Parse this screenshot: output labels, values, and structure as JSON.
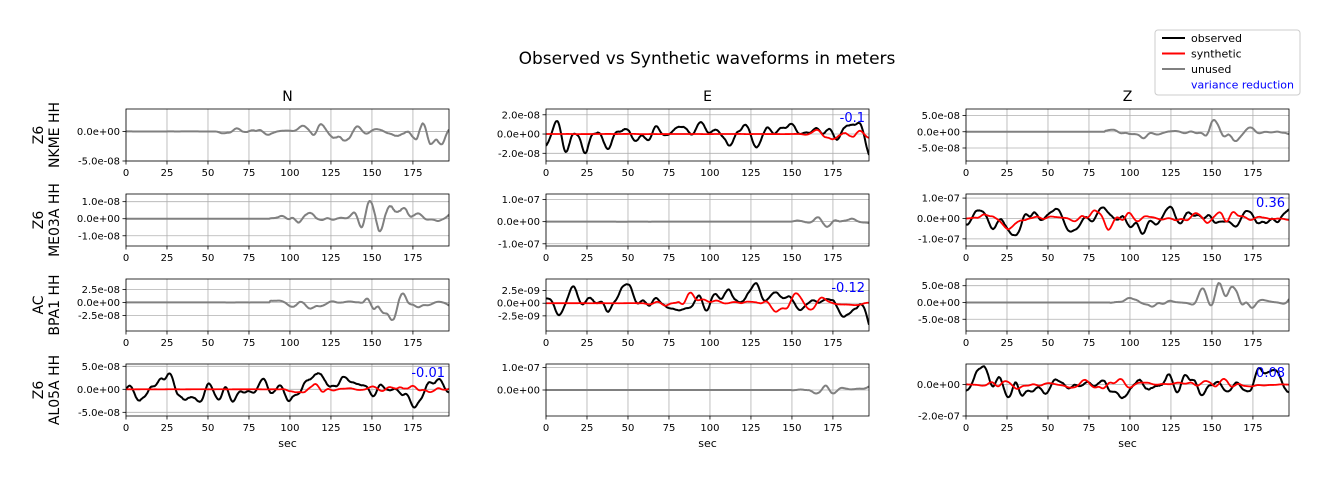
{
  "chart_data": {
    "type": "line",
    "title": "Observed vs Synthetic waveforms in meters",
    "columns": [
      "N",
      "E",
      "Z"
    ],
    "xlabel": "sec",
    "xlim": [
      0,
      197
    ],
    "xticks": [
      0,
      25,
      50,
      75,
      100,
      125,
      150,
      175
    ],
    "grid": true,
    "legend": {
      "position": "top-right",
      "entries": [
        {
          "name": "observed",
          "color": "#000000"
        },
        {
          "name": "synthetic",
          "color": "#ff0000"
        },
        {
          "name": "unused",
          "color": "#808080"
        },
        {
          "name": "variance reduction",
          "color": "#0000ff"
        }
      ]
    },
    "stations": [
      {
        "line1": "Z6",
        "line2": "NKME HH"
      },
      {
        "line1": "Z6",
        "line2": "ME03A HH"
      },
      {
        "line1": "AC",
        "line2": "BPA1 HH"
      },
      {
        "line1": "Z6",
        "line2": "AL05A HH"
      }
    ],
    "panels": [
      {
        "row": 0,
        "col": 0,
        "mode": "unused",
        "ylim": [
          -5e-08,
          3.8e-08
        ],
        "yticks": [
          {
            "v": 0,
            "label": "0.0e+00"
          },
          {
            "v": -5e-08,
            "label": "-5.0e-08"
          }
        ],
        "amp": 4e-08,
        "onset": 55,
        "seed": 1,
        "vr": ""
      },
      {
        "row": 0,
        "col": 1,
        "mode": "used",
        "ylim": [
          -2.8e-08,
          2.6e-08
        ],
        "yticks": [
          {
            "v": 2e-08,
            "label": "2.0e-08"
          },
          {
            "v": 0,
            "label": "0.0e+00"
          },
          {
            "v": -2e-08,
            "label": "-2.0e-08"
          }
        ],
        "amp": 2.2e-08,
        "synamp": 1.6e-08,
        "synstart": 155,
        "seed": 2,
        "vr": "-0.1"
      },
      {
        "row": 0,
        "col": 2,
        "mode": "unused",
        "ylim": [
          -9e-08,
          7e-08
        ],
        "yticks": [
          {
            "v": 5e-08,
            "label": "5.0e-08"
          },
          {
            "v": 0,
            "label": "0.0e+00"
          },
          {
            "v": -5e-08,
            "label": "-5.0e-08"
          }
        ],
        "amp": 8e-08,
        "onset": 85,
        "seed": 3,
        "vr": ""
      },
      {
        "row": 1,
        "col": 0,
        "mode": "unused",
        "ylim": [
          -1.6e-08,
          1.45e-08
        ],
        "yticks": [
          {
            "v": 1e-08,
            "label": "1.0e-08"
          },
          {
            "v": 0,
            "label": "0.0e+00"
          },
          {
            "v": -1e-08,
            "label": "-1.0e-08"
          }
        ],
        "amp": 1.4e-08,
        "onset": 88,
        "seed": 4,
        "vr": ""
      },
      {
        "row": 1,
        "col": 1,
        "mode": "unused",
        "ylim": [
          -1.1e-07,
          1.25e-07
        ],
        "yticks": [
          {
            "v": 1e-07,
            "label": "1.0e-07"
          },
          {
            "v": 0,
            "label": "0.0e+00"
          },
          {
            "v": -1e-07,
            "label": "-1.0e-07"
          }
        ],
        "amp": 1.2e-07,
        "onset": 150,
        "seed": 5,
        "vr": ""
      },
      {
        "row": 1,
        "col": 2,
        "mode": "used",
        "ylim": [
          -1.35e-07,
          1.2e-07
        ],
        "yticks": [
          {
            "v": 1e-07,
            "label": "1.0e-07"
          },
          {
            "v": 0,
            "label": "0.0e+00"
          },
          {
            "v": -1e-07,
            "label": "-1.0e-07"
          }
        ],
        "amp": 1.1e-07,
        "synamp": 6e-08,
        "synstart": 0,
        "seed": 6,
        "vr": "0.36"
      },
      {
        "row": 2,
        "col": 0,
        "mode": "unused",
        "ylim": [
          -5.5e-08,
          4.5e-08
        ],
        "yticks": [
          {
            "v": 2.5e-08,
            "label": "2.5e-08"
          },
          {
            "v": 0,
            "label": "0.0e+00"
          },
          {
            "v": -2.5e-08,
            "label": "-2.5e-08"
          }
        ],
        "amp": 4.5e-08,
        "onset": 88,
        "seed": 7,
        "vr": ""
      },
      {
        "row": 2,
        "col": 1,
        "mode": "used",
        "ylim": [
          -5.5e-09,
          4.8e-09
        ],
        "yticks": [
          {
            "v": 2.5e-09,
            "label": "2.5e-09"
          },
          {
            "v": 0,
            "label": "0.0e+00"
          },
          {
            "v": -2.5e-09,
            "label": "-2.5e-09"
          }
        ],
        "amp": 4.5e-09,
        "synamp": 2.6e-09,
        "synstart": 60,
        "seed": 8,
        "vr": "-0.12"
      },
      {
        "row": 2,
        "col": 2,
        "mode": "unused",
        "ylim": [
          -8.5e-08,
          7e-08
        ],
        "yticks": [
          {
            "v": 5e-08,
            "label": "5.0e-08"
          },
          {
            "v": 0,
            "label": "0.0e+00"
          },
          {
            "v": -5e-08,
            "label": "-5.0e-08"
          }
        ],
        "amp": 8e-08,
        "onset": 88,
        "seed": 9,
        "vr": ""
      },
      {
        "row": 3,
        "col": 0,
        "mode": "used",
        "ylim": [
          -5.8e-08,
          5.5e-08
        ],
        "yticks": [
          {
            "v": 5e-08,
            "label": "5.0e-08"
          },
          {
            "v": 0,
            "label": "0.0e+00"
          },
          {
            "v": -5e-08,
            "label": "-5.0e-08"
          }
        ],
        "amp": 5.2e-08,
        "synamp": 2e-08,
        "synstart": 90,
        "seed": 10,
        "vr": "-0.01"
      },
      {
        "row": 3,
        "col": 1,
        "mode": "unused",
        "ylim": [
          -1.15e-07,
          1.15e-07
        ],
        "yticks": [
          {
            "v": 1e-07,
            "label": "1.0e-07"
          },
          {
            "v": 0,
            "label": "0.0e+00"
          }
        ],
        "amp": 1.1e-07,
        "onset": 150,
        "seed": 11,
        "vr": ""
      },
      {
        "row": 3,
        "col": 2,
        "mode": "used",
        "ylim": [
          -2e-07,
          1.3e-07
        ],
        "yticks": [
          {
            "v": 0,
            "label": "0.0e+00"
          },
          {
            "v": -2e-07,
            "label": "-2.0e-07"
          }
        ],
        "amp": 1.3e-07,
        "synamp": 5e-08,
        "synstart": 0,
        "seed": 12,
        "vr": "0.08"
      }
    ]
  }
}
